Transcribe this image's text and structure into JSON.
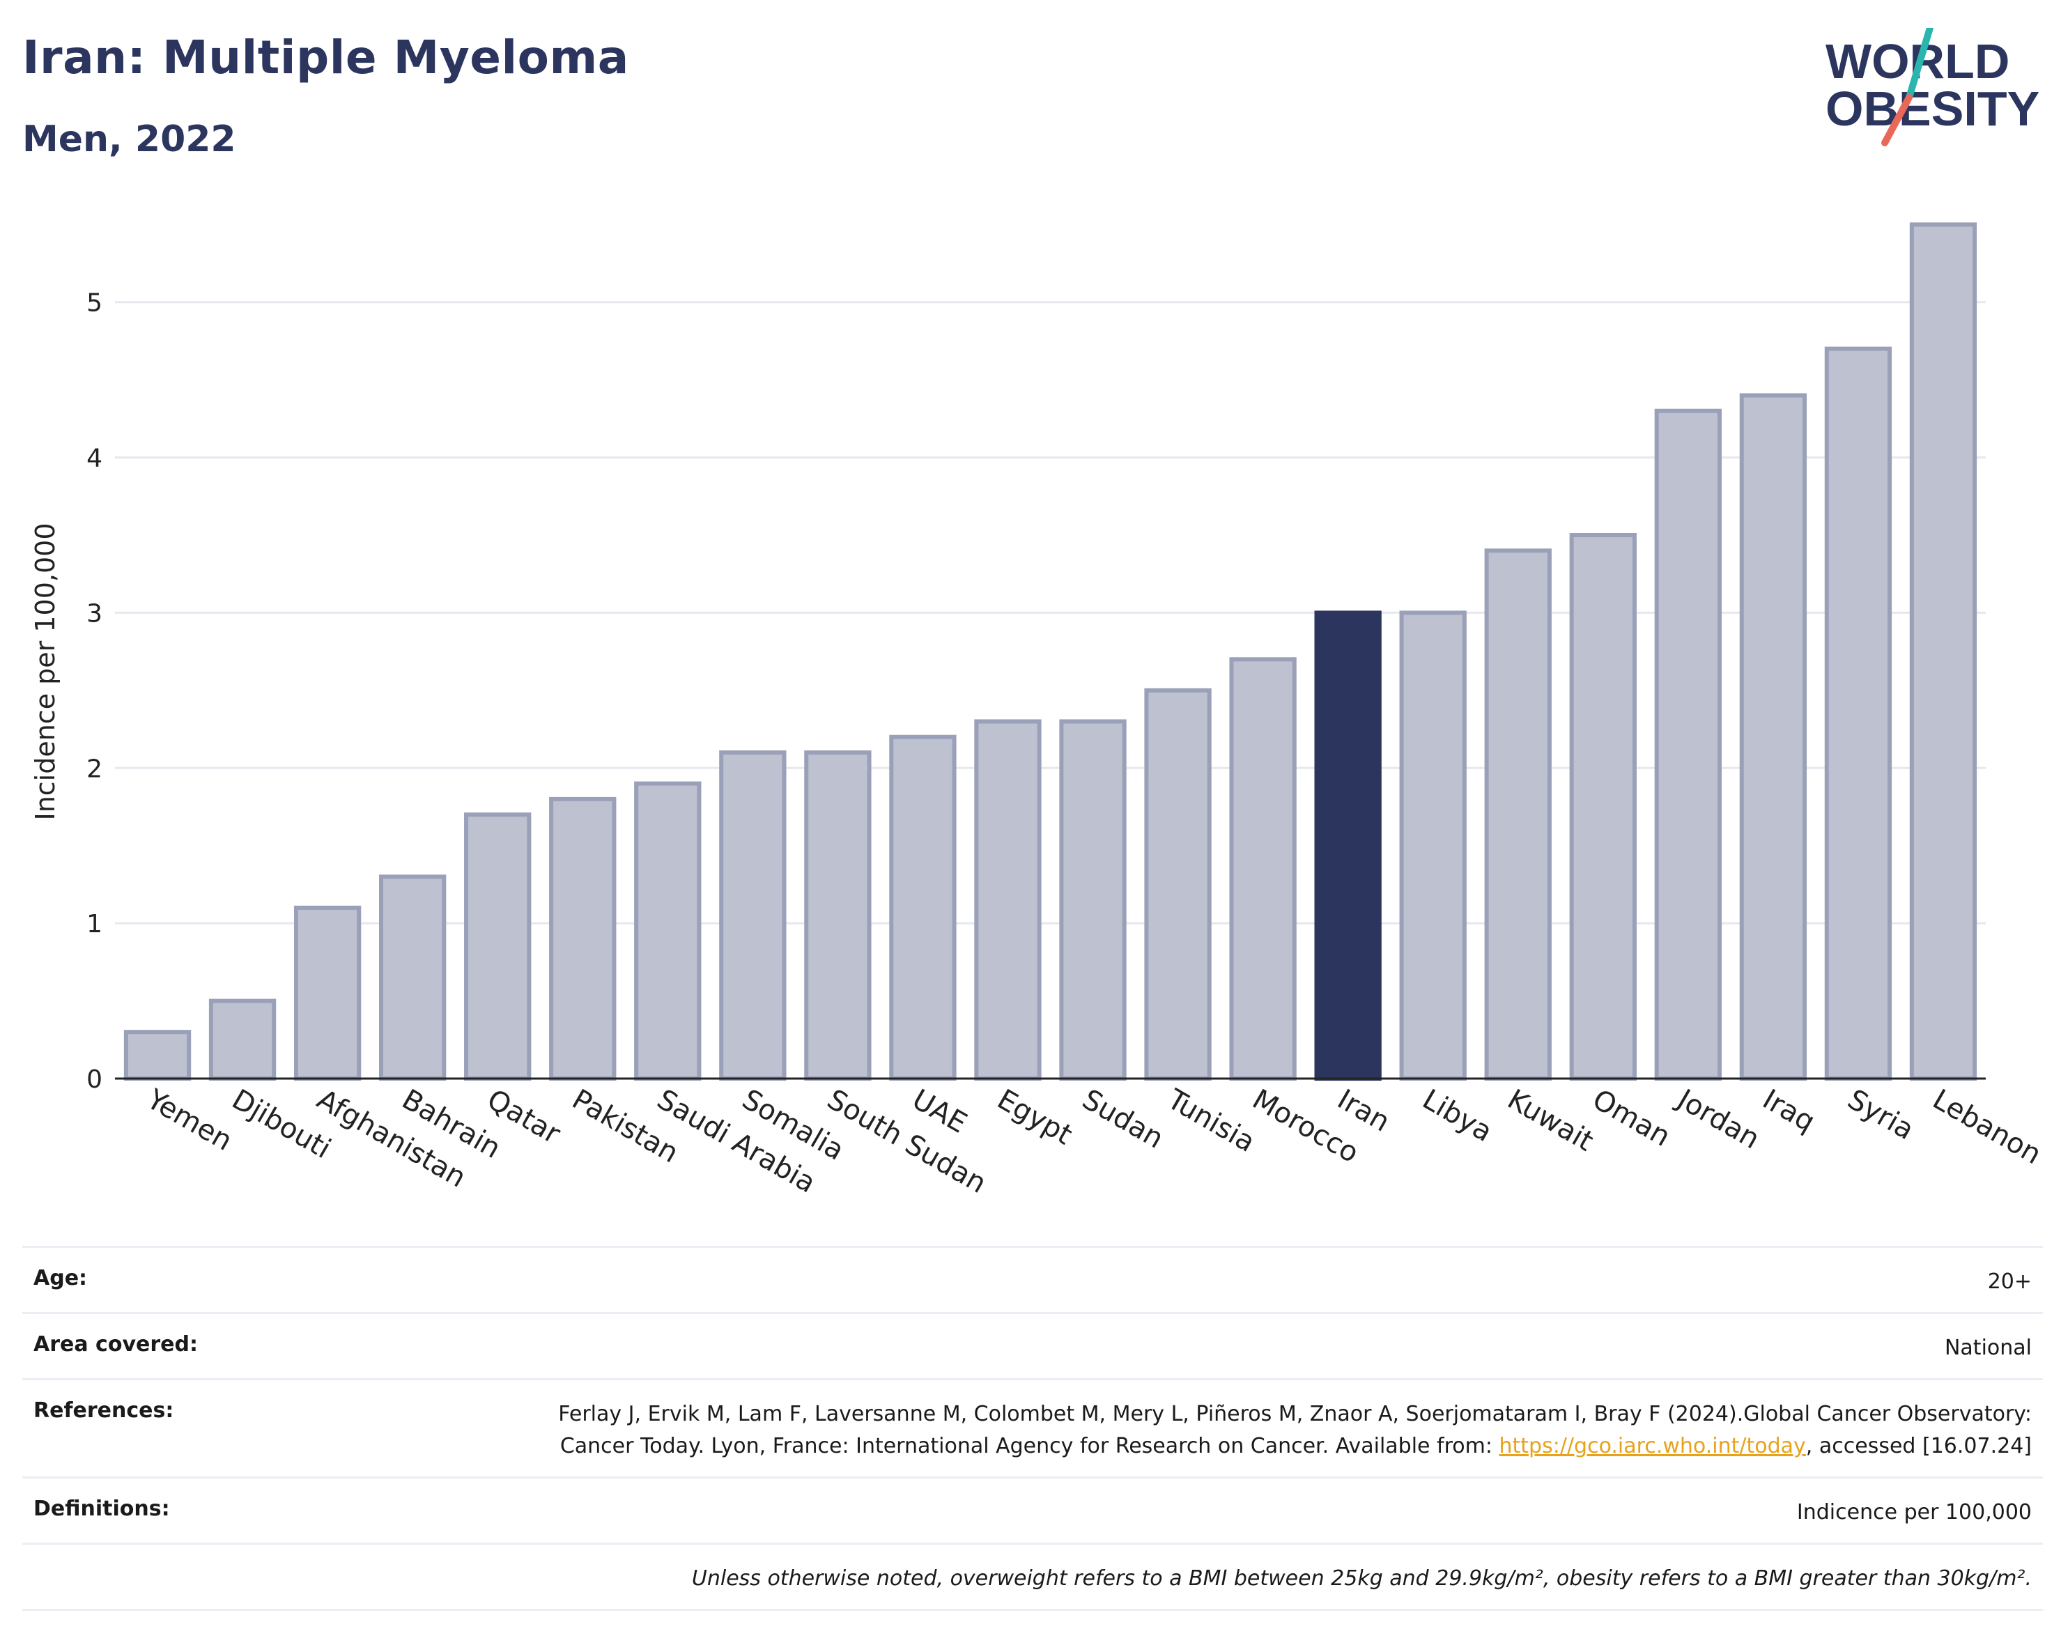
{
  "header": {
    "title": "Iran: Multiple Myeloma",
    "subtitle": "Men, 2022"
  },
  "logo": {
    "line1": "WORLD",
    "line2": "OBESITY",
    "accent_teal": "#2bb5b0",
    "accent_red": "#e8685a"
  },
  "colors": {
    "bar": "#bec1d0",
    "bar_stroke": "#9aa0b8",
    "highlight": "#2b355e",
    "grid": "#e6e8ef"
  },
  "chart_data": {
    "type": "bar",
    "title": "",
    "xlabel": "",
    "ylabel": "Incidence per 100,000",
    "ylim": [
      0,
      5.6
    ],
    "yticks": [
      0,
      1,
      2,
      3,
      4,
      5
    ],
    "highlight": "Iran",
    "categories": [
      "Yemen",
      "Djibouti",
      "Afghanistan",
      "Bahrain",
      "Qatar",
      "Pakistan",
      "Saudi Arabia",
      "Somalia",
      "South Sudan",
      "UAE",
      "Egypt",
      "Sudan",
      "Tunisia",
      "Morocco",
      "Iran",
      "Libya",
      "Kuwait",
      "Oman",
      "Jordan",
      "Iraq",
      "Syria",
      "Lebanon"
    ],
    "values": [
      0.3,
      0.5,
      1.1,
      1.3,
      1.7,
      1.8,
      1.9,
      2.1,
      2.1,
      2.2,
      2.3,
      2.3,
      2.5,
      2.7,
      3.0,
      3.0,
      3.4,
      3.5,
      4.3,
      4.4,
      4.7,
      5.5
    ]
  },
  "info": {
    "age_label": "Age:",
    "age_value": "20+",
    "area_label": "Area covered:",
    "area_value": "National",
    "references_label": "References:",
    "references_text": "Ferlay J, Ervik M, Lam F, Laversanne M, Colombet M, Mery L, Piñeros M, Znaor A, Soerjomataram I, Bray F (2024).Global Cancer Observatory: Cancer Today. Lyon, France: International Agency for Research on Cancer. Available from: ",
    "references_link": "https://gco.iarc.who.int/today",
    "references_suffix": ", accessed [16.07.24]",
    "definitions_label": "Definitions:",
    "definitions_value": "Indicence per 100,000",
    "note": "Unless otherwise noted, overweight refers to a BMI between 25kg and 29.9kg/m², obesity refers to a BMI greater than 30kg/m²."
  }
}
